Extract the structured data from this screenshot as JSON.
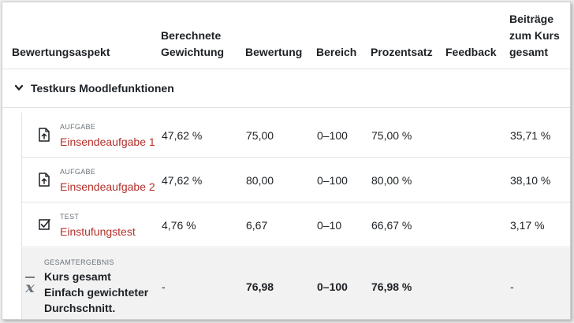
{
  "headers": {
    "item": "Bewertungsaspekt",
    "weight_line1": "Berechnete",
    "weight_line2": "Gewichtung",
    "grade": "Bewertung",
    "range": "Bereich",
    "percentage": "Prozentsatz",
    "feedback": "Feedback",
    "contrib_line1": "Beiträge",
    "contrib_line2": "zum Kurs",
    "contrib_line3": "gesamt"
  },
  "category": {
    "name": "Testkurs Moodlefunktionen",
    "icon": "chevron-down-icon"
  },
  "rows": [
    {
      "type": "AUFGABE",
      "name": "Einsendeaufgabe 1",
      "icon": "assignment-icon",
      "weight": "47,62 %",
      "grade": "75,00",
      "range": "0–100",
      "percentage": "75,00 %",
      "feedback": "",
      "contribution": "35,71 %"
    },
    {
      "type": "AUFGABE",
      "name": "Einsendeaufgabe 2",
      "icon": "assignment-icon",
      "weight": "47,62 %",
      "grade": "80,00",
      "range": "0–100",
      "percentage": "80,00 %",
      "feedback": "",
      "contribution": "38,10 %"
    },
    {
      "type": "TEST",
      "name": "Einstufungstest",
      "icon": "quiz-checkbox-icon",
      "weight": "4,76 %",
      "grade": "6,67",
      "range": "0–10",
      "percentage": "66,67 %",
      "feedback": "",
      "contribution": "3,17 %"
    }
  ],
  "total": {
    "type": "GESAMTERGEBNIS",
    "line1": "Kurs gesamt",
    "line2": "Einfach gewichteter",
    "line3": "Durchschnitt.",
    "icon": "mean-x-bar-icon",
    "weight": "-",
    "grade": "76,98",
    "range": "0–100",
    "percentage": "76,98 %",
    "contribution": "-"
  },
  "colors": {
    "link": "#b5302b",
    "border": "#dee2e6",
    "total_bg": "#f2f2f2",
    "muted": "#6a737b"
  }
}
